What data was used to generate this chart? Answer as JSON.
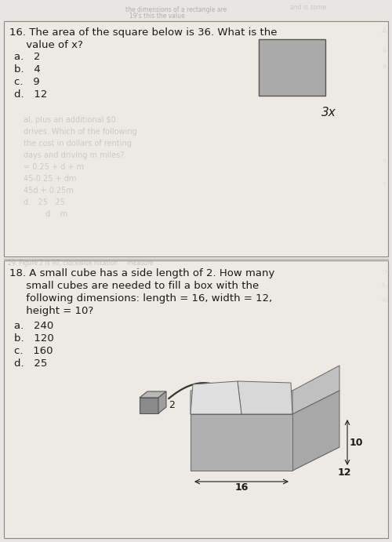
{
  "bg_color": "#e8e6e2",
  "section_bg": "#edeae4",
  "text_color": "#1a1a1a",
  "square_color": "#aaaaaa",
  "box_face_front": "#b0b0b0",
  "box_face_right": "#999999",
  "box_face_bottom": "#888888",
  "box_flap_color": "#c8c8c8",
  "cube_front": "#8a8a8a",
  "cube_top": "#b8b8b8",
  "cube_right": "#9e9e9e",
  "font_size": 9.5,
  "font_size_bold": 10,
  "q16_line1": "16. The area of the square below is 36. What is the",
  "q16_line2": "     value of x?",
  "q16_opts": [
    "a.   2",
    "b.   4",
    "c.   9",
    "d.   12"
  ],
  "q16_sq_label": "3x",
  "q18_line1": "18. A small cube has a side length of 2. How many",
  "q18_line2": "     small cubes are needed to fill a box with the",
  "q18_line3": "     following dimensions: length = 16, width = 12,",
  "q18_line4": "     height = 10?",
  "q18_opts": [
    "a.   240",
    "b.   120",
    "c.   160",
    "d.   25"
  ],
  "lbl_16": "16",
  "lbl_10": "10",
  "lbl_12": "12",
  "lbl_2": "2",
  "bleed_top": [
    "the dimensions of a rectangle are",
    "19's this the value"
  ],
  "bleed_mid_div": "29. Figure 2 is 90, clockwise rotation     measure",
  "bleed_q16": [
    [
      30,
      148,
      "al, plus an additional $0."
    ],
    [
      30,
      163,
      "drives. Which of the following"
    ],
    [
      30,
      178,
      "the cost in dollars of renting"
    ],
    [
      30,
      193,
      "days and driving m miles?"
    ],
    [
      30,
      208,
      "= 0.25 + d + m"
    ],
    [
      30,
      223,
      "45-0.25 + dm"
    ],
    [
      30,
      238,
      "45d + 0.25m"
    ],
    [
      30,
      253,
      "d.   25   25"
    ],
    [
      30,
      268,
      "         d    m"
    ]
  ]
}
